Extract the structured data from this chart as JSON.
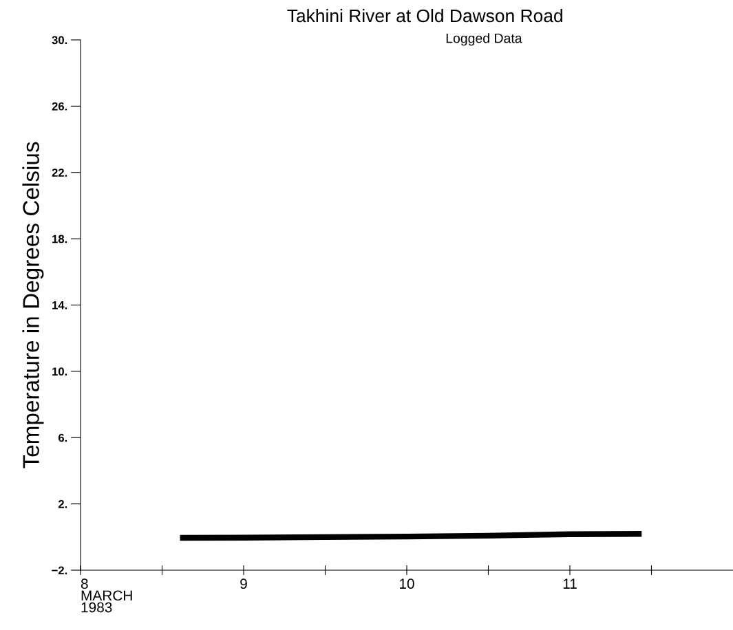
{
  "chart_data": {
    "type": "line",
    "title": "Takhini River at Old Dawson Road",
    "subtitle": "Logged Data",
    "ylabel": "Temperature in Degrees Celsius",
    "x": [
      8.61,
      9.0,
      9.5,
      10.0,
      10.5,
      11.0,
      11.44
    ],
    "series": [
      {
        "color": "#000000",
        "values": [
          -0.05,
          -0.04,
          0.0,
          0.03,
          0.08,
          0.17,
          0.19
        ]
      }
    ],
    "xlim": [
      8,
      12
    ],
    "xticks": [
      {
        "value": 8,
        "label": "8\nMARCH\n1983"
      },
      {
        "value": 8.5,
        "label": null
      },
      {
        "value": 9,
        "label": "9"
      },
      {
        "value": 9.5,
        "label": null
      },
      {
        "value": 10,
        "label": "10"
      },
      {
        "value": 10.5,
        "label": null
      },
      {
        "value": 11,
        "label": "11"
      },
      {
        "value": 11.5,
        "label": null
      }
    ],
    "ylim": [
      -2,
      30
    ],
    "yticks": [
      {
        "value": -2,
        "label": "−2."
      },
      {
        "value": 2,
        "label": "2."
      },
      {
        "value": 6,
        "label": "6."
      },
      {
        "value": 10,
        "label": "10."
      },
      {
        "value": 14,
        "label": "14."
      },
      {
        "value": 18,
        "label": "18."
      },
      {
        "value": 22,
        "label": "22."
      },
      {
        "value": 26,
        "label": "26."
      },
      {
        "value": 30,
        "label": "30."
      }
    ],
    "grid": false,
    "marker": "none",
    "line_style": "solid"
  }
}
